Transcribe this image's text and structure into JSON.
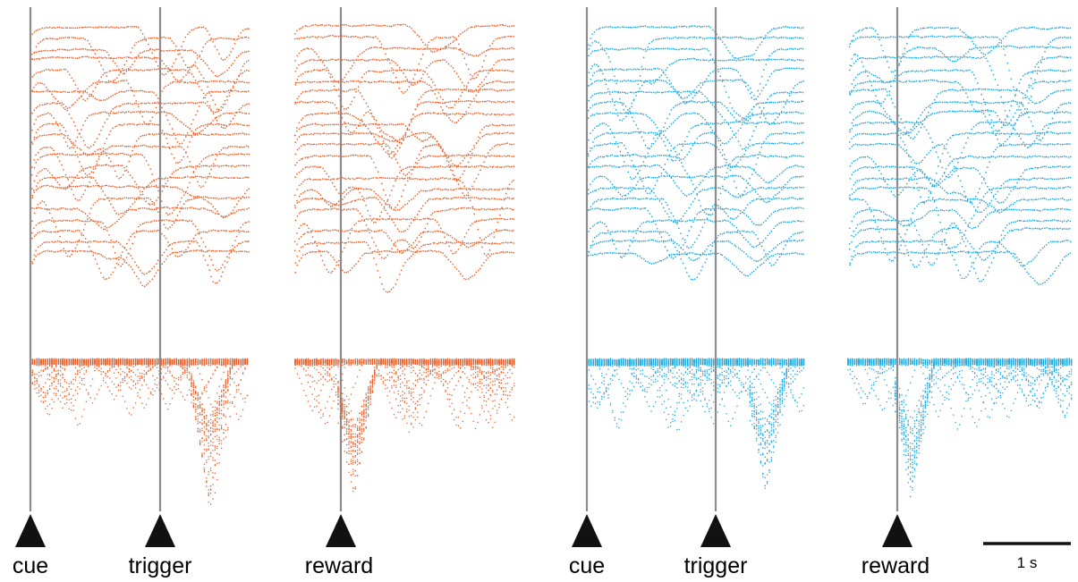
{
  "colors": {
    "condition_1": "#e8622e",
    "condition_2": "#22a8dc",
    "event_line": "#8c8c8c",
    "marker": "#111111"
  },
  "chart_data": [
    {
      "type": "scatter",
      "condition": "condition_1",
      "color": "#e8622e",
      "panels": [
        {
          "aligned_to": "cue",
          "events": [
            "cue",
            "trigger"
          ],
          "event_times_s": [
            0.0,
            1.0
          ],
          "window_s": [
            -0.05,
            1.7
          ]
        },
        {
          "aligned_to": "reward",
          "events": [
            "reward"
          ],
          "event_times_s": [
            0.0
          ],
          "window_s": [
            -0.35,
            1.35
          ]
        }
      ],
      "upper_traces": 22,
      "lower_traces": 40
    },
    {
      "type": "scatter",
      "condition": "condition_2",
      "color": "#22a8dc",
      "panels": [
        {
          "aligned_to": "cue",
          "events": [
            "cue",
            "trigger"
          ],
          "event_times_s": [
            0.0,
            1.0
          ],
          "window_s": [
            -0.05,
            1.7
          ]
        },
        {
          "aligned_to": "reward",
          "events": [
            "reward"
          ],
          "event_times_s": [
            0.0
          ],
          "window_s": [
            -0.35,
            1.35
          ]
        }
      ],
      "upper_traces": 22,
      "lower_traces": 40
    }
  ],
  "event_labels": {
    "cue_1": "cue",
    "trigger_1": "trigger",
    "reward_1": "reward",
    "cue_2": "cue",
    "trigger_2": "trigger",
    "reward_2": "reward"
  },
  "scale_bar": {
    "label": "1 s",
    "duration_s": 1
  }
}
